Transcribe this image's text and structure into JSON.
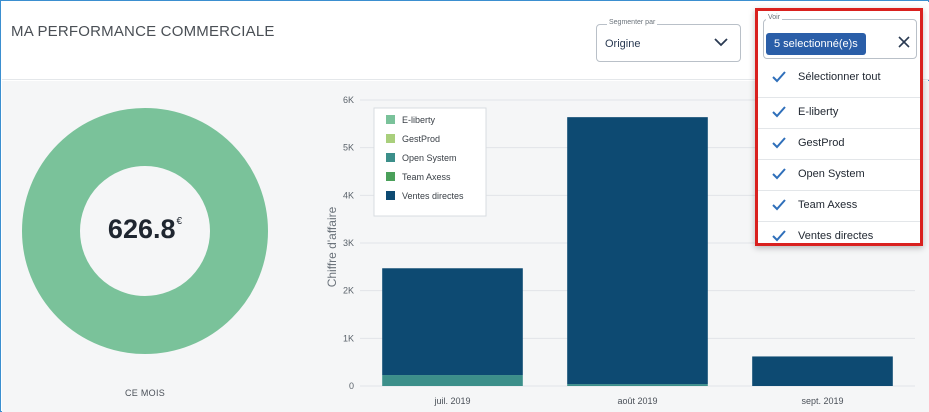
{
  "header": {
    "title": "MA PERFORMANCE COMMERCIALE"
  },
  "segment": {
    "legend": "Segmenter par",
    "value": "Origine",
    "icon": "chevron-down-icon"
  },
  "voir": {
    "legend": "Voir",
    "chip_label": "5 selectionné(e)s",
    "select_all": "Sélectionner tout",
    "options": [
      "E-liberty",
      "GestProd",
      "Open System",
      "Team Axess",
      "Ventes directes"
    ],
    "close_icon": "close-icon",
    "check_icon": "check-icon",
    "check_color": "#2f6fba"
  },
  "donut": {
    "value": "626.8",
    "currency": "€",
    "label": "CE MOIS",
    "color": "#7ac29a"
  },
  "chart_data": {
    "type": "bar",
    "stacked": true,
    "categories": [
      "juil. 2019",
      "août 2019",
      "sept. 2019"
    ],
    "ylabel": "Chiffre d'affaire",
    "ylim": [
      0,
      6000
    ],
    "yticks": [
      0,
      1000,
      2000,
      3000,
      4000,
      5000,
      6000
    ],
    "ytick_labels": [
      "0",
      "1K",
      "2K",
      "3K",
      "4K",
      "5K",
      "6K"
    ],
    "grid": true,
    "legend_position": "top-left",
    "series": [
      {
        "name": "E-liberty",
        "color": "#7ac29a",
        "values": [
          0,
          0,
          0
        ]
      },
      {
        "name": "GestProd",
        "color": "#a9cf7c",
        "values": [
          0,
          0,
          0
        ]
      },
      {
        "name": "Open System",
        "color": "#3c8f8a",
        "values": [
          230,
          40,
          0
        ]
      },
      {
        "name": "Team Axess",
        "color": "#4aa05a",
        "values": [
          0,
          0,
          0
        ]
      },
      {
        "name": "Ventes directes",
        "color": "#0d4a72",
        "values": [
          2240,
          5600,
          620
        ]
      }
    ]
  }
}
